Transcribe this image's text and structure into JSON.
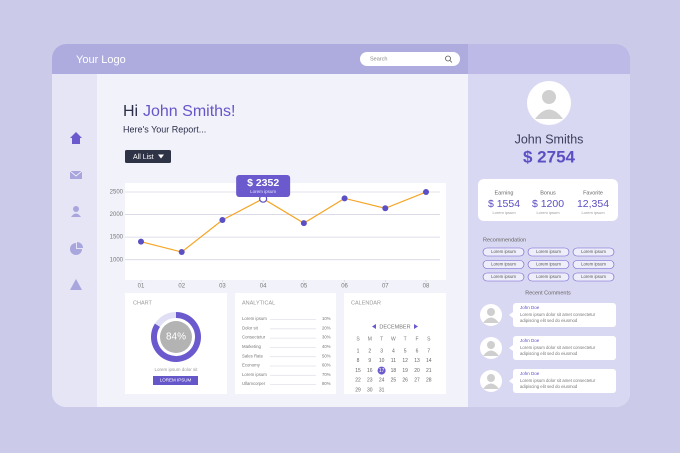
{
  "header": {
    "logo": "Your Logo",
    "search": "Search"
  },
  "greeting": {
    "hi": "Hi",
    "name": "John Smiths!",
    "subtitle": "Here's Your Report..."
  },
  "filter": "All List",
  "chart_data": {
    "type": "line",
    "categories": [
      "01",
      "02",
      "03",
      "04",
      "05",
      "06",
      "07",
      "08"
    ],
    "values": [
      1400,
      1170,
      1880,
      2352,
      1810,
      2360,
      2140,
      2500
    ],
    "value_labels": [
      null,
      null,
      null,
      "$ 2352",
      null,
      null,
      null,
      null
    ],
    "tooltip_caption": "Lorem ipsum",
    "color": "#f5a524",
    "marker_color": "#5b4fc4",
    "ylim": [
      550,
      2700
    ],
    "yticks": [
      1000,
      1500,
      2000,
      2500
    ],
    "grid": true
  },
  "profile": {
    "name": "John Smiths",
    "balance": "$ 2754"
  },
  "stats": [
    {
      "label": "Earning",
      "value": "$ 1554",
      "caption": "Lorem ipsum"
    },
    {
      "label": "Bonus",
      "value": "$ 1200",
      "caption": "Lorem ipsum"
    },
    {
      "label": "Favorite",
      "value": "12,354",
      "caption": "Lorem ipsum"
    }
  ],
  "recommendation": {
    "title": "Recommendation",
    "items": [
      "Lorem ipsum",
      "Lorem ipsum",
      "Lorem ipsum",
      "Lorem ipsum",
      "Lorem ipsum",
      "Lorem ipsum",
      "Lorem ipsum",
      "Lorem ipsum",
      "Lorem ipsum"
    ]
  },
  "comments": {
    "title": "Recent Comments",
    "items": [
      {
        "name": "John Doe",
        "lines": [
          "Lorem ipsum dolor sit amet consectetur",
          "adipiscing elit sed do eiusmod"
        ]
      },
      {
        "name": "John Doe",
        "lines": [
          "Lorem ipsum dolor sit amet consectetur",
          "adipiscing elit sed do eiusmod"
        ]
      },
      {
        "name": "John Doe",
        "lines": [
          "Lorem ipsum dolor sit amet consectetur",
          "adipiscing elit sed do eiusmod"
        ]
      }
    ]
  },
  "chart_panel": {
    "title": "CHART",
    "percent": 84,
    "percent_label": "84%",
    "caption": "Lorem ipsum dolor sit",
    "button": "LOREM IPSUM"
  },
  "analytical": {
    "title": "ANALYTICAL",
    "rows": [
      {
        "label": "Lorem ipsum",
        "value": "10%"
      },
      {
        "label": "Dolor sit",
        "value": "20%"
      },
      {
        "label": "Consectetur",
        "value": "30%"
      },
      {
        "label": "Marketing",
        "value": "40%"
      },
      {
        "label": "Sales Rate",
        "value": "50%"
      },
      {
        "label": "Economy",
        "value": "60%"
      },
      {
        "label": "Lorem ipsum",
        "value": "70%"
      },
      {
        "label": "Ullamcorper",
        "value": "80%"
      }
    ]
  },
  "calendar": {
    "title": "CALENDAR",
    "month": "DECEMBER",
    "weekdays": [
      "S",
      "M",
      "T",
      "W",
      "T",
      "F",
      "S"
    ],
    "weeks": [
      [
        "1",
        "2",
        "3",
        "4",
        "5",
        "6",
        "7"
      ],
      [
        "8",
        "9",
        "10",
        "11",
        "12",
        "13",
        "14"
      ],
      [
        "15",
        "16",
        "17",
        "18",
        "19",
        "20",
        "21"
      ],
      [
        "22",
        "23",
        "24",
        "25",
        "26",
        "27",
        "28"
      ],
      [
        "29",
        "30",
        "31"
      ]
    ],
    "selected": "17"
  }
}
